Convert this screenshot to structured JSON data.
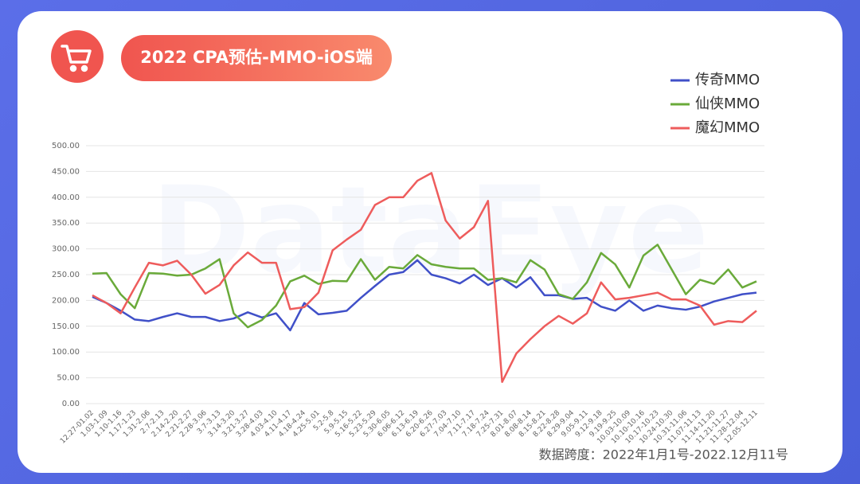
{
  "chart_data": {
    "type": "line",
    "title": "2022 CPA预估-MMO-iOS端",
    "footnote": "数据跨度：2022年1月1号-2022.12月11号",
    "watermark": "DataEye",
    "categories": [
      "12.27-01.02",
      "1.03-1.09",
      "1.10-1.16",
      "1.17-1.23",
      "1.31-2.06",
      "2.7-2.13",
      "2.14-2.20",
      "2.21-2.27",
      "2.28-3.06",
      "3.7-3.13",
      "3.14-3.20",
      "3.21-3.27",
      "3.28-4.03",
      "4.03-4.10",
      "4.11-4.17",
      "4.18-4.24",
      "4.25-5.01",
      "5.2-5.8",
      "5.9-5.15",
      "5.16-5.22",
      "5.23-5.29",
      "5.30-6.05",
      "6.06-6.12",
      "6.13-6.19",
      "6.20-6.26",
      "6.27-7.03",
      "7.04-7.10",
      "7.11-7.17",
      "7.18-7.24",
      "7.25-7.31",
      "8.01-8.07",
      "8.08-8.14",
      "8.15-8.21",
      "8.22-8.28",
      "8.29-9.04",
      "9.05-9.11",
      "9.12-9.18",
      "9.19-9.25",
      "10.03-10.09",
      "10.10-10.16",
      "10.17-10.23",
      "10.24-10.30",
      "10.31-11.06",
      "11.07-11.13",
      "11.14-11.20",
      "11.21-11.27",
      "11.28-12.04",
      "12.05-12.11"
    ],
    "series": [
      {
        "name": "传奇MMO",
        "color": "#4050c8",
        "values": [
          207,
          195,
          180,
          163,
          160,
          168,
          175,
          168,
          168,
          160,
          165,
          177,
          167,
          175,
          142,
          195,
          173,
          176,
          180,
          205,
          228,
          250,
          255,
          278,
          250,
          243,
          233,
          250,
          230,
          243,
          225,
          245,
          210,
          210,
          203,
          205,
          188,
          180,
          200,
          180,
          190,
          185,
          182,
          188,
          198,
          205,
          212,
          215
        ]
      },
      {
        "name": "仙侠MMO",
        "color": "#6aaa3a",
        "values": [
          252,
          253,
          212,
          185,
          253,
          252,
          248,
          250,
          262,
          280,
          175,
          148,
          162,
          190,
          237,
          248,
          232,
          238,
          237,
          280,
          240,
          265,
          262,
          288,
          270,
          265,
          262,
          262,
          240,
          243,
          235,
          278,
          260,
          212,
          203,
          235,
          292,
          270,
          225,
          287,
          308,
          260,
          212,
          240,
          232,
          260,
          225,
          237
        ]
      },
      {
        "name": "魔幻MMO",
        "color": "#ee5c5c",
        "values": [
          210,
          195,
          175,
          225,
          273,
          268,
          277,
          250,
          213,
          230,
          268,
          293,
          273,
          273,
          183,
          187,
          215,
          297,
          318,
          337,
          385,
          400,
          400,
          432,
          447,
          355,
          320,
          342,
          393,
          42,
          97,
          125,
          150,
          170,
          155,
          175,
          235,
          202,
          205,
          210,
          215,
          202,
          202,
          190,
          153,
          160,
          158,
          180
        ]
      }
    ],
    "ylim": [
      0,
      500
    ],
    "yticks": [
      {
        "value": 0,
        "label": "0.00"
      },
      {
        "value": 50,
        "label": "50.00"
      },
      {
        "value": 100,
        "label": "100.00"
      },
      {
        "value": 150,
        "label": "150.00"
      },
      {
        "value": 200,
        "label": "200.00"
      },
      {
        "value": 250,
        "label": "250.00"
      },
      {
        "value": 300,
        "label": "300.00"
      },
      {
        "value": 350,
        "label": "350.00"
      },
      {
        "value": 400,
        "label": "400.00"
      },
      {
        "value": 450,
        "label": "450.00"
      },
      {
        "value": 500,
        "label": "500.00"
      }
    ],
    "grid": true
  }
}
